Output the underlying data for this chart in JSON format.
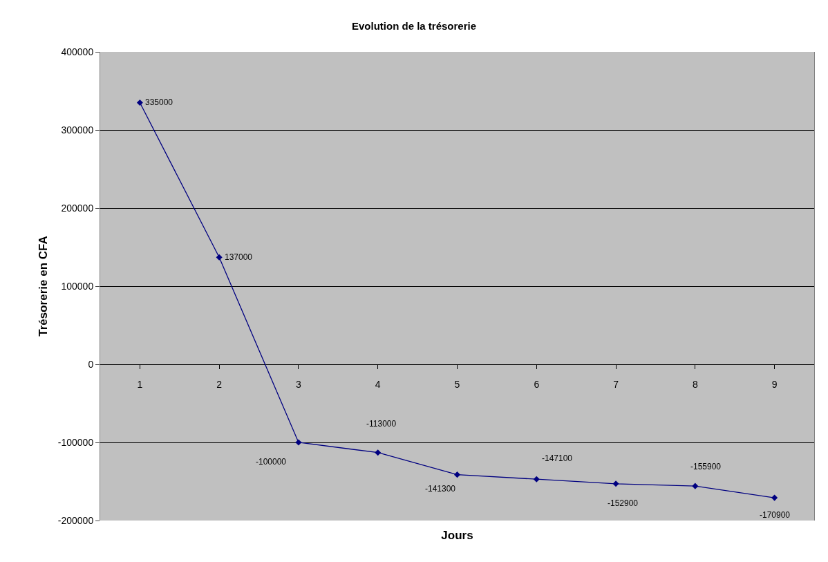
{
  "chart_data": {
    "type": "line",
    "title": "Evolution de la trésorerie",
    "xlabel": "Jours",
    "ylabel": "Trésorerie en CFA",
    "categories": [
      "1",
      "2",
      "3",
      "4",
      "5",
      "6",
      "7",
      "8",
      "9"
    ],
    "series": [
      {
        "color": "#000080",
        "values": [
          335000,
          137000,
          -100000,
          -113000,
          -141300,
          -147100,
          -152900,
          -155900,
          -170900
        ]
      }
    ],
    "ylim": [
      -200000,
      400000
    ],
    "yticks": [
      -200000,
      -100000,
      0,
      100000,
      200000,
      300000,
      400000
    ],
    "grid": "y",
    "marker": "diamond",
    "line_style": "solid",
    "data_labels": true,
    "legend": false
  }
}
